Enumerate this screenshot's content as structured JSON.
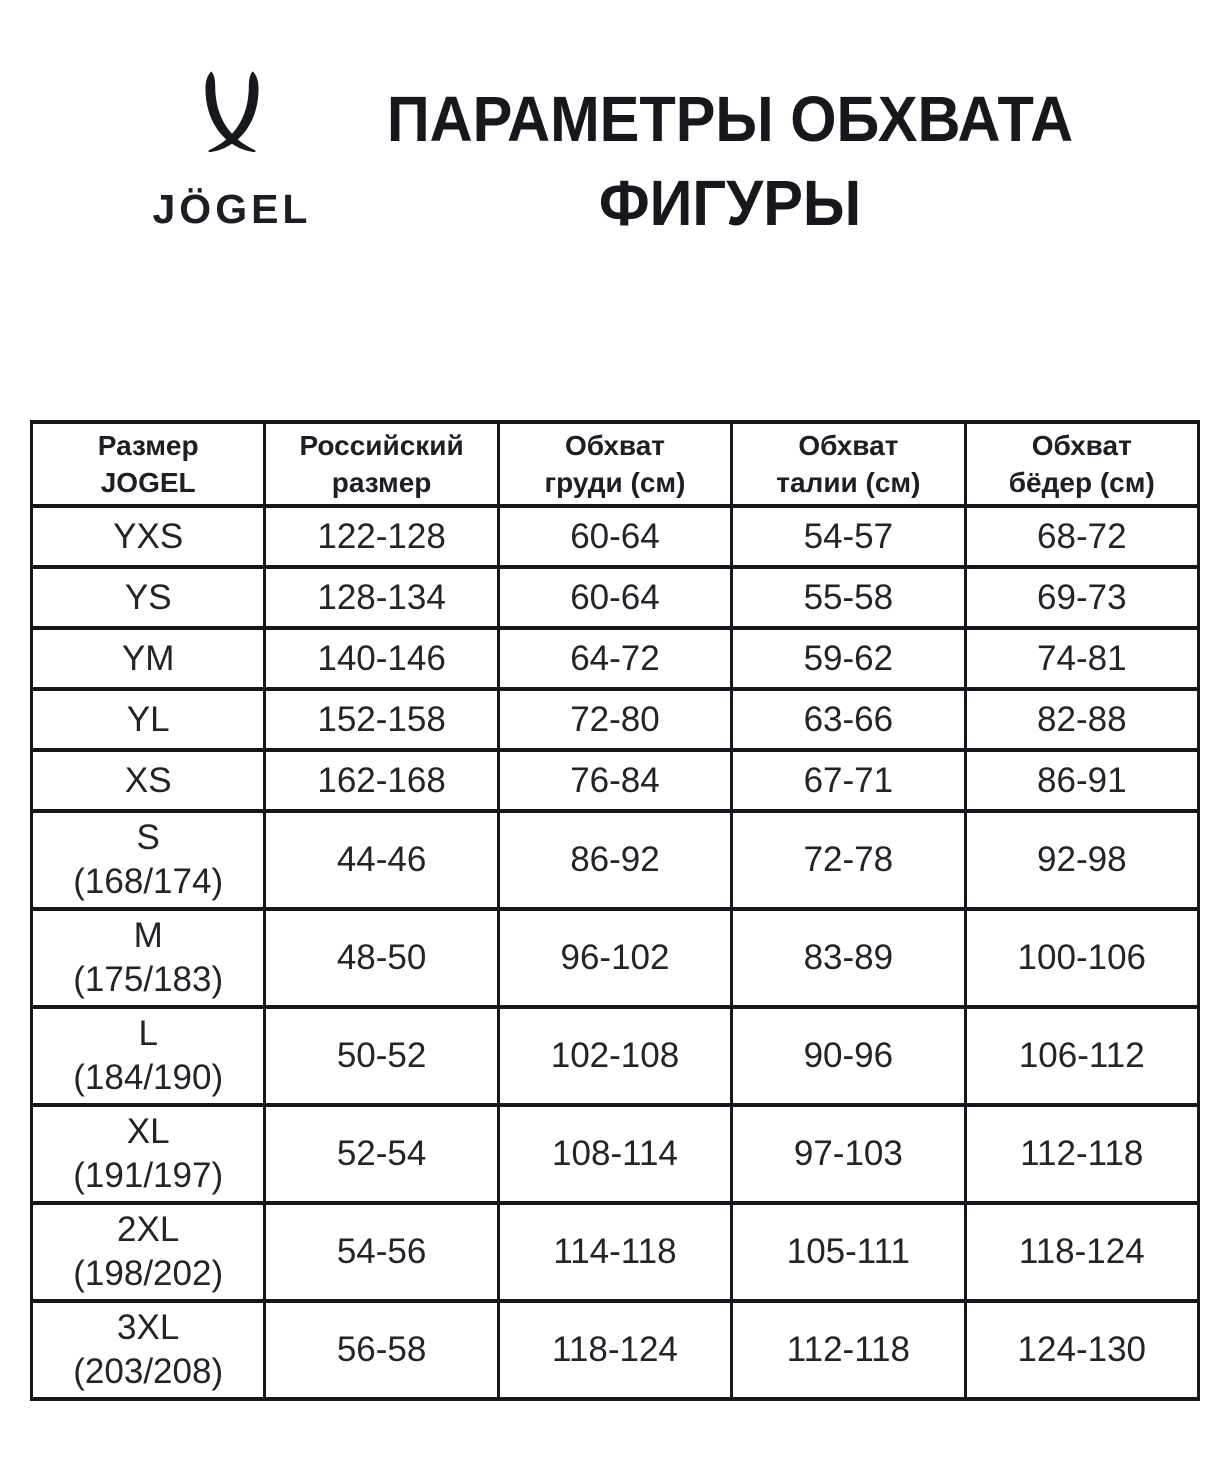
{
  "branding": {
    "wordmark": "JÖGEL",
    "logo_icon": "jogel-crossed-swoosh-mark"
  },
  "title": {
    "line1": "ПАРАМЕТРЫ ОБХВАТА",
    "line2": "ФИГУРЫ"
  },
  "colors": {
    "background": "#ffffff",
    "ink": "#14171c",
    "text": "#212429"
  },
  "table": {
    "headers": [
      "Размер\nJOGEL",
      "Российский\nразмер",
      "Обхват\nгруди (см)",
      "Обхват\nталии (см)",
      "Обхват\nбёдер (см)"
    ],
    "rows": [
      {
        "size": "YXS",
        "note": "",
        "russian_size": "122-128",
        "chest": "60-64",
        "waist": "54-57",
        "hips": "68-72"
      },
      {
        "size": "YS",
        "note": "",
        "russian_size": "128-134",
        "chest": "60-64",
        "waist": "55-58",
        "hips": "69-73"
      },
      {
        "size": "YM",
        "note": "",
        "russian_size": "140-146",
        "chest": "64-72",
        "waist": "59-62",
        "hips": "74-81"
      },
      {
        "size": "YL",
        "note": "",
        "russian_size": "152-158",
        "chest": "72-80",
        "waist": "63-66",
        "hips": "82-88"
      },
      {
        "size": "XS",
        "note": "",
        "russian_size": "162-168",
        "chest": "76-84",
        "waist": "67-71",
        "hips": "86-91"
      },
      {
        "size": "S",
        "note": "(168/174)",
        "russian_size": "44-46",
        "chest": "86-92",
        "waist": "72-78",
        "hips": "92-98"
      },
      {
        "size": "M",
        "note": "(175/183)",
        "russian_size": "48-50",
        "chest": "96-102",
        "waist": "83-89",
        "hips": "100-106"
      },
      {
        "size": "L",
        "note": "(184/190)",
        "russian_size": "50-52",
        "chest": "102-108",
        "waist": "90-96",
        "hips": "106-112"
      },
      {
        "size": "XL",
        "note": "(191/197)",
        "russian_size": "52-54",
        "chest": "108-114",
        "waist": "97-103",
        "hips": "112-118"
      },
      {
        "size": "2XL",
        "note": "(198/202)",
        "russian_size": "54-56",
        "chest": "114-118",
        "waist": "105-111",
        "hips": "118-124"
      },
      {
        "size": "3XL",
        "note": "(203/208)",
        "russian_size": "56-58",
        "chest": "118-124",
        "waist": "112-118",
        "hips": "124-130"
      }
    ]
  }
}
